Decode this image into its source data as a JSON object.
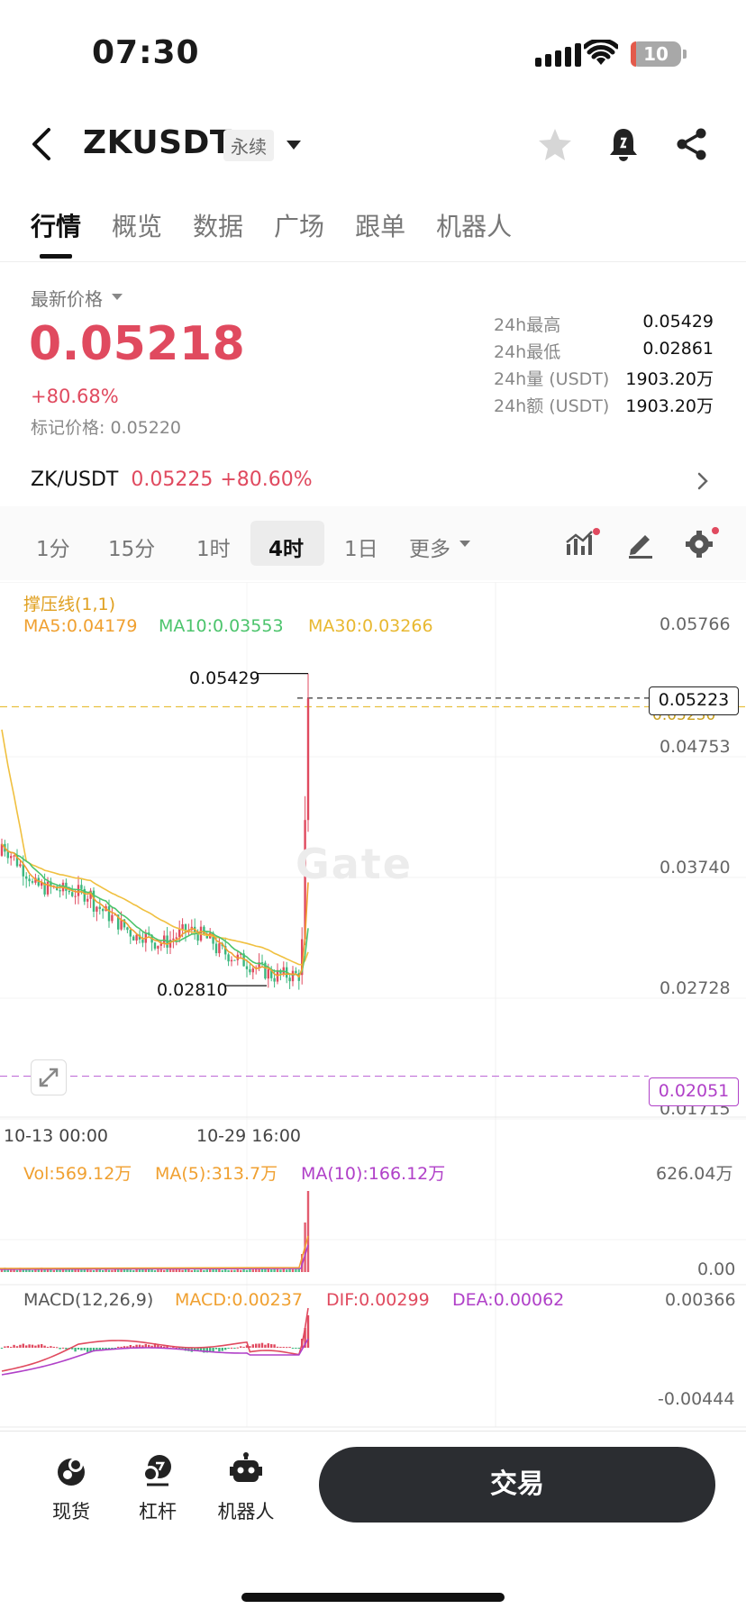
{
  "status_bar": {
    "time": "07:30",
    "battery": "10"
  },
  "header": {
    "title": "ZKUSDT",
    "badge": "永续"
  },
  "tabs": [
    {
      "label": "行情",
      "active": true
    },
    {
      "label": "概览"
    },
    {
      "label": "数据"
    },
    {
      "label": "广场"
    },
    {
      "label": "跟单"
    },
    {
      "label": "机器人"
    }
  ],
  "price": {
    "label": "最新价格",
    "last": "0.05218",
    "change": "+80.68%",
    "mark": "标记价格: 0.05220"
  },
  "stats": [
    {
      "k": "24h最高",
      "v": "0.05429"
    },
    {
      "k": "24h最低",
      "v": "0.02861"
    },
    {
      "k": "24h量 (USDT)",
      "v": "1903.20万"
    },
    {
      "k": "24h额 (USDT)",
      "v": "1903.20万"
    }
  ],
  "spot": {
    "pair": "ZK/USDT",
    "price": "0.05225",
    "change": "+80.60%"
  },
  "timeframes": [
    {
      "label": "1分"
    },
    {
      "label": "15分"
    },
    {
      "label": "1时"
    },
    {
      "label": "4时",
      "active": true
    },
    {
      "label": "1日"
    },
    {
      "label": "更多"
    }
  ],
  "chart": {
    "indicator_title": "撑压线(1,1)",
    "ma5": "MA5:0.04179",
    "ma10": "MA10:0.03553",
    "ma30": "MA30:0.03266",
    "y_labels": [
      "0.05766",
      "0.04753",
      "0.03740",
      "0.02728",
      "0.01715"
    ],
    "high_label": "0.05429",
    "low_label": "0.02810",
    "current_price_tag": "0.05223",
    "support_tag": "0.02051",
    "hidden_tag": "0.05230",
    "x_labels": [
      "10-13 00:00",
      "10-29 16:00"
    ],
    "watermark": "Gate",
    "vol": "Vol:569.12万",
    "vol_ma5": "MA(5):313.7万",
    "vol_ma10": "MA(10):166.12万",
    "vol_max": "626.04万",
    "vol_min": "0.00",
    "macd_title": "MACD(12,26,9)",
    "macd": "MACD:0.00237",
    "dif": "DIF:0.00299",
    "dea": "DEA:0.00062",
    "macd_max": "0.00366",
    "macd_min": "-0.00444",
    "colors": {
      "up": "#e04a5f",
      "down": "#3bb77e",
      "ma5": "#f0a030",
      "ma10": "#4cc46c",
      "ma30": "#f0c040",
      "purple": "#b040c8"
    }
  },
  "bottom_nav": [
    {
      "label": "现货",
      "icon": "spot-icon"
    },
    {
      "label": "杠杆",
      "icon": "leverage-icon"
    },
    {
      "label": "机器人",
      "icon": "robot-icon"
    }
  ],
  "trade_button": "交易"
}
